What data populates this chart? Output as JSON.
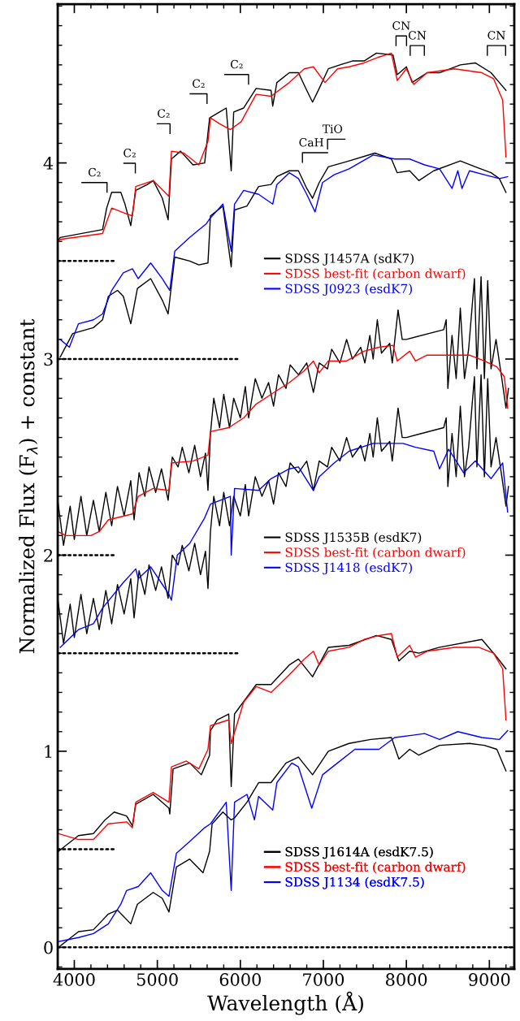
{
  "chart_data": {
    "type": "line",
    "xlabel": "Wavelength (Å)",
    "ylabel": "Normalized Flux (F$_{λ}$) + constant",
    "xlim": [
      3800,
      9300
    ],
    "ylim": [
      -0.11,
      4.81
    ],
    "xticks": [
      4000,
      5000,
      6000,
      7000,
      8000,
      9000
    ],
    "yticks": [
      0,
      1,
      2,
      3,
      4
    ],
    "series": [
      {
        "name": "SDSS J1457A (sdK7)",
        "color": "#000000",
        "x": [
          3800,
          3830,
          4340,
          4390,
          4450,
          4560,
          4610,
          4680,
          4740,
          4880,
          4950,
          5060,
          5130,
          5170,
          5280,
          5430,
          5570,
          5630,
          5750,
          5830,
          5890,
          5920,
          6040,
          6190,
          6370,
          6390,
          6440,
          6590,
          6700,
          6800,
          6870,
          6950,
          7060,
          7200,
          7350,
          7490,
          7640,
          7840,
          7890,
          8000,
          8070,
          8250,
          8400,
          8650,
          8830,
          9020,
          9120,
          9200
        ],
        "values": [
          3.6,
          3.62,
          3.66,
          3.77,
          3.85,
          3.85,
          3.79,
          3.68,
          3.86,
          3.89,
          3.91,
          3.82,
          3.71,
          4.02,
          4.06,
          3.99,
          4.0,
          4.23,
          4.26,
          4.28,
          3.96,
          4.26,
          4.28,
          4.38,
          4.37,
          4.29,
          4.41,
          4.46,
          4.46,
          4.37,
          4.31,
          4.38,
          4.48,
          4.5,
          4.52,
          4.52,
          4.56,
          4.55,
          4.45,
          4.49,
          4.41,
          4.46,
          4.46,
          4.5,
          4.51,
          4.46,
          4.41,
          4.37
        ]
      },
      {
        "name": "SDSS best-fit (carbon dwarf)",
        "color": "#ff0000",
        "x": [
          3800,
          3830,
          4340,
          4390,
          4450,
          4630,
          4700,
          4740,
          4950,
          5140,
          5170,
          5320,
          5500,
          5610,
          5640,
          5750,
          5880,
          6010,
          6190,
          6370,
          6590,
          6770,
          6880,
          7020,
          7170,
          7310,
          7490,
          7670,
          7820,
          7890,
          8000,
          8090,
          8250,
          8580,
          8910,
          9050,
          9160,
          9200
        ],
        "values": [
          3.6,
          3.61,
          3.64,
          3.7,
          3.77,
          3.74,
          3.73,
          3.88,
          3.91,
          3.83,
          4.06,
          4.05,
          3.99,
          4.11,
          4.23,
          4.2,
          4.17,
          4.21,
          4.35,
          4.34,
          4.41,
          4.48,
          4.49,
          4.41,
          4.48,
          4.49,
          4.51,
          4.54,
          4.56,
          4.42,
          4.48,
          4.4,
          4.46,
          4.48,
          4.46,
          4.43,
          4.32,
          4.03
        ]
      },
      {
        "color": "#000000",
        "x": [
          3830,
          3980,
          4230,
          4340,
          4410,
          4520,
          4590,
          4680,
          4760,
          4920,
          5060,
          5130,
          5210,
          5390,
          5500,
          5610,
          5640,
          5790,
          5890,
          5930,
          6080,
          6220,
          6370,
          6440,
          6590,
          6700,
          6800,
          6870,
          6950,
          7060,
          7310,
          7620,
          7820,
          7890,
          8040,
          8150,
          8330,
          8650,
          8830,
          9020,
          9120,
          9200
        ],
        "values": [
          3.01,
          3.13,
          3.16,
          3.2,
          3.32,
          3.35,
          3.32,
          3.18,
          3.36,
          3.41,
          3.3,
          3.23,
          3.52,
          3.5,
          3.48,
          3.49,
          3.73,
          3.78,
          3.47,
          3.76,
          3.78,
          3.88,
          3.89,
          3.93,
          3.96,
          3.96,
          3.87,
          3.82,
          3.9,
          3.98,
          4.01,
          4.05,
          4.02,
          3.95,
          3.96,
          3.91,
          3.96,
          4.01,
          3.98,
          3.95,
          3.92,
          3.85
        ]
      },
      {
        "name": "SDSS J0923 (esdK7)",
        "color": "#0000ff",
        "x": [
          3830,
          3940,
          4050,
          4230,
          4340,
          4450,
          4590,
          4700,
          4770,
          4920,
          5060,
          5150,
          5210,
          5390,
          5590,
          5640,
          5790,
          5890,
          5930,
          6040,
          6220,
          6390,
          6440,
          6590,
          6700,
          6800,
          6900,
          6990,
          7130,
          7310,
          7600,
          7860,
          8040,
          8220,
          8400,
          8550,
          8620,
          8670,
          8760,
          8940,
          9120,
          9220
        ],
        "values": [
          3.1,
          3.06,
          3.18,
          3.2,
          3.23,
          3.35,
          3.44,
          3.46,
          3.41,
          3.49,
          3.41,
          3.35,
          3.55,
          3.62,
          3.69,
          3.72,
          3.79,
          3.55,
          3.79,
          3.86,
          3.84,
          3.79,
          3.89,
          3.95,
          3.92,
          3.84,
          3.75,
          3.9,
          3.94,
          3.97,
          4.04,
          4.02,
          4.02,
          3.99,
          3.97,
          3.87,
          3.96,
          3.87,
          3.96,
          3.94,
          3.92,
          3.93
        ]
      },
      {
        "name": "SDSS J1535B (esdK7)",
        "color": "#000000",
        "x": [
          3800,
          3870,
          3950,
          4000,
          4080,
          4150,
          4230,
          4300,
          4380,
          4450,
          4520,
          4600,
          4680,
          4720,
          4780,
          4850,
          4900,
          4980,
          5050,
          5130,
          5180,
          5250,
          5300,
          5380,
          5450,
          5520,
          5580,
          5610,
          5640,
          5680,
          5750,
          5800,
          5870,
          5920,
          6000,
          6060,
          6100,
          6180,
          6260,
          6340,
          6400,
          6460,
          6550,
          6600,
          6700,
          6800,
          6880,
          6950,
          7050,
          7100,
          7200,
          7280,
          7350,
          7450,
          7500,
          7560,
          7600,
          7650,
          7700,
          7800,
          7830,
          7900,
          7950,
          8000,
          8450,
          8480,
          8500,
          8550,
          8600,
          8650,
          8700,
          8750,
          8820,
          8850,
          8900,
          8940,
          8980,
          9020,
          9080,
          9150,
          9200,
          9230
        ],
        "values": [
          2.28,
          2.05,
          2.25,
          2.08,
          2.3,
          2.1,
          2.28,
          2.12,
          2.32,
          2.15,
          2.35,
          2.2,
          2.38,
          2.18,
          2.42,
          2.3,
          2.45,
          2.32,
          2.44,
          2.28,
          2.5,
          2.45,
          2.55,
          2.42,
          2.56,
          2.4,
          2.52,
          2.33,
          2.62,
          2.8,
          2.65,
          2.82,
          2.65,
          2.8,
          2.7,
          2.86,
          2.7,
          2.9,
          2.8,
          2.88,
          2.76,
          2.92,
          2.85,
          2.97,
          2.92,
          2.98,
          2.83,
          2.98,
          2.95,
          3.05,
          2.98,
          3.1,
          3.0,
          3.06,
          2.98,
          3.12,
          3.0,
          3.2,
          3.03,
          3.08,
          2.98,
          3.25,
          3.1,
          3.1,
          3.15,
          3.2,
          2.85,
          3.12,
          2.9,
          3.26,
          2.9,
          3.05,
          3.41,
          2.95,
          3.42,
          2.9,
          3.4,
          2.95,
          3.1,
          2.9,
          2.75,
          2.85
        ]
      },
      {
        "name": "SDSS best-fit (carbon dwarf)",
        "color": "#ff0000",
        "x": [
          3800,
          3900,
          4000,
          4200,
          4300,
          4410,
          4700,
          4770,
          4950,
          5140,
          5170,
          5430,
          5610,
          5640,
          5860,
          6040,
          6190,
          6370,
          6590,
          6770,
          6880,
          6950,
          7060,
          7280,
          7490,
          7670,
          7840,
          7890,
          8040,
          8110,
          8250,
          8510,
          8760,
          8940,
          9090,
          9180,
          9220
        ],
        "values": [
          2.12,
          2.1,
          2.1,
          2.1,
          2.12,
          2.18,
          2.21,
          2.3,
          2.34,
          2.33,
          2.47,
          2.48,
          2.51,
          2.63,
          2.65,
          2.7,
          2.77,
          2.82,
          2.88,
          2.94,
          2.99,
          2.93,
          2.99,
          2.99,
          3.04,
          3.06,
          3.07,
          2.99,
          3.04,
          2.99,
          3.02,
          3.02,
          3.02,
          2.99,
          2.96,
          2.91,
          2.75
        ]
      },
      {
        "color": "#000000",
        "x": [
          3800,
          3870,
          3950,
          4000,
          4080,
          4150,
          4230,
          4300,
          4380,
          4450,
          4520,
          4600,
          4680,
          4720,
          4780,
          4850,
          4900,
          4980,
          5050,
          5130,
          5180,
          5250,
          5300,
          5380,
          5450,
          5520,
          5580,
          5610,
          5640,
          5680,
          5750,
          5800,
          5870,
          5920,
          6000,
          6060,
          6100,
          6180,
          6260,
          6340,
          6400,
          6460,
          6550,
          6600,
          6700,
          6800,
          6880,
          6950,
          7050,
          7100,
          7200,
          7280,
          7350,
          7450,
          7500,
          7560,
          7600,
          7650,
          7700,
          7800,
          7830,
          7900,
          7950,
          8000,
          8450,
          8480,
          8500,
          8550,
          8600,
          8650,
          8700,
          8750,
          8820,
          8850,
          8900,
          8940,
          8980,
          9020,
          9080,
          9150,
          9200,
          9230
        ],
        "values": [
          1.78,
          1.55,
          1.75,
          1.58,
          1.8,
          1.6,
          1.78,
          1.62,
          1.82,
          1.65,
          1.85,
          1.7,
          1.88,
          1.68,
          1.92,
          1.8,
          1.95,
          1.82,
          1.94,
          1.78,
          2.0,
          1.95,
          2.05,
          1.92,
          2.06,
          1.9,
          2.02,
          1.83,
          2.12,
          2.3,
          2.15,
          2.32,
          2.15,
          2.3,
          2.2,
          2.36,
          2.2,
          2.4,
          2.3,
          2.38,
          2.26,
          2.42,
          2.35,
          2.47,
          2.42,
          2.48,
          2.33,
          2.48,
          2.45,
          2.55,
          2.48,
          2.6,
          2.5,
          2.56,
          2.48,
          2.62,
          2.5,
          2.7,
          2.53,
          2.58,
          2.48,
          2.75,
          2.6,
          2.6,
          2.65,
          2.7,
          2.35,
          2.62,
          2.4,
          2.76,
          2.4,
          2.55,
          2.91,
          2.45,
          2.92,
          2.4,
          2.9,
          2.45,
          2.6,
          2.4,
          2.25,
          2.35
        ]
      },
      {
        "name": "SDSS J1418 (esdK7)",
        "color": "#0000ff",
        "x": [
          3830,
          4050,
          4230,
          4340,
          4590,
          4740,
          4770,
          4920,
          5140,
          5170,
          5240,
          5390,
          5570,
          5640,
          5880,
          5890,
          5930,
          6220,
          6370,
          6590,
          6700,
          6880,
          6950,
          7130,
          7310,
          7600,
          7960,
          8110,
          8330,
          8400,
          8510,
          8690,
          8830,
          9020,
          9160,
          9220
        ],
        "values": [
          1.53,
          1.62,
          1.65,
          1.73,
          1.86,
          1.93,
          1.88,
          1.94,
          1.8,
          1.77,
          2.0,
          2.06,
          2.19,
          2.26,
          2.3,
          2.0,
          2.34,
          2.33,
          2.39,
          2.44,
          2.45,
          2.33,
          2.4,
          2.47,
          2.53,
          2.57,
          2.57,
          2.55,
          2.53,
          2.44,
          2.54,
          2.42,
          2.48,
          2.39,
          2.47,
          2.22
        ]
      },
      {
        "name": "SDSS J1614A (esdK7.5)",
        "color": "#000000",
        "x": [
          3810,
          3900,
          4050,
          4230,
          4370,
          4480,
          4630,
          4700,
          4740,
          4950,
          5140,
          5150,
          5190,
          5390,
          5530,
          5630,
          5640,
          5720,
          5860,
          5890,
          5930,
          6190,
          6370,
          6590,
          6700,
          6870,
          7060,
          7310,
          7640,
          7820,
          7910,
          8040,
          8150,
          8400,
          8910,
          9090,
          9200
        ],
        "values": [
          0.49,
          0.52,
          0.57,
          0.58,
          0.65,
          0.69,
          0.67,
          0.62,
          0.73,
          0.78,
          0.71,
          0.68,
          0.91,
          0.94,
          0.88,
          0.98,
          1.105,
          1.16,
          1.19,
          0.82,
          1.19,
          1.34,
          1.34,
          1.44,
          1.47,
          1.38,
          1.53,
          1.54,
          1.59,
          1.57,
          1.46,
          1.51,
          1.5,
          1.53,
          1.57,
          1.48,
          1.42
        ]
      },
      {
        "name": "SDSS best-fit (carbon dwarf)",
        "color": "#ff0000",
        "x": [
          3810,
          4050,
          4230,
          4410,
          4630,
          4700,
          4740,
          4950,
          5140,
          5170,
          5350,
          5500,
          5610,
          5640,
          5860,
          5890,
          6040,
          6190,
          6370,
          6590,
          6770,
          6880,
          6950,
          7060,
          7310,
          7490,
          7670,
          7820,
          7890,
          8040,
          8110,
          8250,
          8580,
          8870,
          9050,
          9160,
          9200
        ],
        "values": [
          0.58,
          0.55,
          0.55,
          0.63,
          0.64,
          0.61,
          0.74,
          0.79,
          0.74,
          0.92,
          0.95,
          0.91,
          1.01,
          1.13,
          1.16,
          1.04,
          1.25,
          1.33,
          1.3,
          1.39,
          1.47,
          1.51,
          1.44,
          1.51,
          1.53,
          1.57,
          1.59,
          1.6,
          1.48,
          1.54,
          1.48,
          1.51,
          1.53,
          1.53,
          1.5,
          1.42,
          1.16
        ]
      },
      {
        "color": "#000000",
        "x": [
          3810,
          4050,
          4230,
          4410,
          4520,
          4680,
          4760,
          4950,
          5060,
          5140,
          5230,
          5390,
          5550,
          5630,
          5660,
          5790,
          5890,
          5930,
          6080,
          6220,
          6370,
          6550,
          6700,
          6870,
          7060,
          7310,
          7570,
          7820,
          7910,
          8040,
          8150,
          8400,
          8760,
          8940,
          9090,
          9200
        ],
        "values": [
          0.0,
          0.08,
          0.09,
          0.17,
          0.19,
          0.12,
          0.22,
          0.28,
          0.25,
          0.18,
          0.41,
          0.45,
          0.38,
          0.49,
          0.63,
          0.69,
          0.65,
          0.66,
          0.74,
          0.84,
          0.84,
          0.94,
          0.97,
          0.88,
          1.0,
          1.04,
          1.06,
          1.07,
          0.96,
          1.01,
          0.98,
          1.03,
          1.04,
          1.03,
          1.01,
          0.9
        ]
      },
      {
        "name": "SDSS J1134 (esdK7.5)",
        "color": "#0000ff",
        "x": [
          3810,
          4050,
          4230,
          4410,
          4560,
          4630,
          4770,
          4920,
          5060,
          5140,
          5230,
          5390,
          5570,
          5640,
          5830,
          5890,
          5930,
          6080,
          6170,
          6220,
          6390,
          6440,
          6620,
          6700,
          6860,
          6990,
          7170,
          7380,
          7670,
          7860,
          8220,
          8400,
          8620,
          8910,
          9120,
          9220
        ],
        "values": [
          0.03,
          0.05,
          0.07,
          0.12,
          0.22,
          0.29,
          0.31,
          0.38,
          0.29,
          0.26,
          0.48,
          0.54,
          0.61,
          0.63,
          0.74,
          0.29,
          0.74,
          0.78,
          0.65,
          0.77,
          0.7,
          0.84,
          0.94,
          0.92,
          0.71,
          0.88,
          0.94,
          1.01,
          1.01,
          1.07,
          1.09,
          1.06,
          1.1,
          1.07,
          1.06,
          1.105
        ]
      },
      {
        "color": "#000000",
        "line_style": "dotted",
        "x": [
          3800,
          4500
        ],
        "values": [
          3.5,
          3.5
        ]
      },
      {
        "color": "#000000",
        "line_style": "dotted",
        "x": [
          3800,
          6000
        ],
        "values": [
          3.0,
          3.0
        ]
      },
      {
        "color": "#000000",
        "line_style": "dotted",
        "x": [
          3800,
          4500
        ],
        "values": [
          2.0,
          2.0
        ]
      },
      {
        "color": "#000000",
        "line_style": "dotted",
        "x": [
          3800,
          6000
        ],
        "values": [
          1.5,
          1.5
        ]
      },
      {
        "color": "#000000",
        "line_style": "dotted",
        "x": [
          3800,
          4500
        ],
        "values": [
          0.5,
          0.5
        ]
      },
      {
        "color": "#000000",
        "line_style": "dotted",
        "x": [
          3800,
          9300
        ],
        "values": [
          0.0,
          0.0
        ]
      }
    ],
    "legend": "right",
    "annotations": [
      "C₂",
      "C₂",
      "C₂",
      "C₂",
      "C₂",
      "CN",
      "CN",
      "CN",
      "CaH",
      "TiO"
    ]
  }
}
